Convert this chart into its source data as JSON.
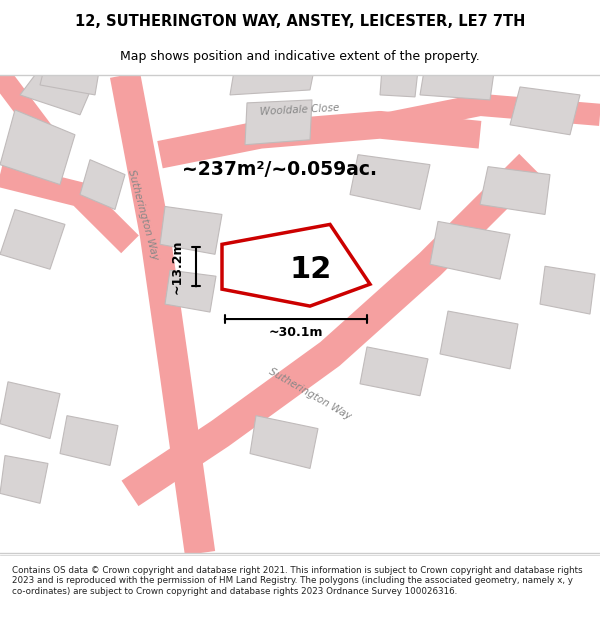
{
  "title_line1": "12, SUTHERINGTON WAY, ANSTEY, LEICESTER, LE7 7TH",
  "title_line2": "Map shows position and indicative extent of the property.",
  "footer_text": "Contains OS data © Crown copyright and database right 2021. This information is subject to Crown copyright and database rights 2023 and is reproduced with the permission of HM Land Registry. The polygons (including the associated geometry, namely x, y co-ordinates) are subject to Crown copyright and database rights 2023 Ordnance Survey 100026316.",
  "map_bg": "#f0eeee",
  "road_color": "#f5a0a0",
  "building_color": "#d8d4d4",
  "building_edge": "#c0bbbb",
  "highlight_poly_color": "#cc0000",
  "area_text": "~237m²/~0.059ac.",
  "number_text": "12",
  "dim_width": "~30.1m",
  "dim_height": "~13.2m",
  "road_label1": "Sutherington Way",
  "road_label2": "Wooldale Close",
  "road_label3": "Sutherington Way"
}
